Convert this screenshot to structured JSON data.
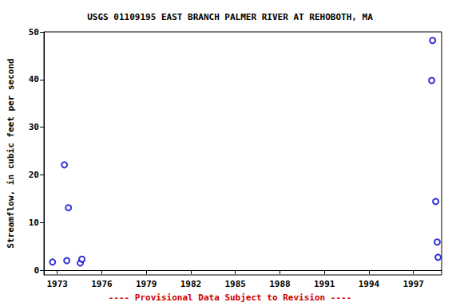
{
  "chart_data": {
    "type": "scatter",
    "title": "USGS 01109195 EAST BRANCH PALMER RIVER AT REHOBOTH, MA",
    "y_label": "Streamflow, in cubic feet per second",
    "annotation": "---- Provisional Data Subject to Revision ----",
    "x": [
      1972.68,
      1973.48,
      1973.64,
      1973.75,
      1974.55,
      1974.66,
      1998.29,
      1998.23,
      1998.5,
      1998.6,
      1998.66
    ],
    "values": [
      1.7,
      22.1,
      2.0,
      13.1,
      1.5,
      2.3,
      48.2,
      39.8,
      14.4,
      5.9,
      2.7
    ],
    "color": "#0000cc",
    "marker": "circle_open",
    "xlim": [
      1972.1,
      1998.9
    ],
    "xticks": [
      1973,
      1976,
      1979,
      1982,
      1985,
      1988,
      1991,
      1994,
      1997
    ],
    "ylim": [
      -1,
      50
    ],
    "yticks": [
      0,
      10,
      20,
      30,
      40,
      50
    ],
    "grid": false
  }
}
